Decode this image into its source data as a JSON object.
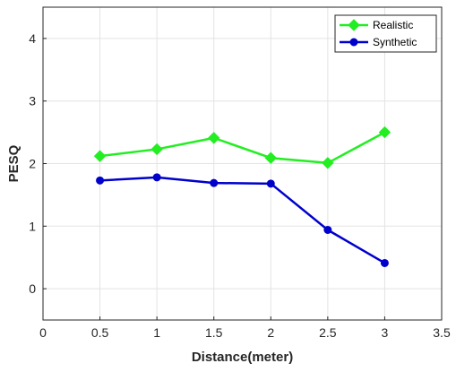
{
  "chart_data": {
    "type": "line",
    "title": "",
    "xlabel": "Distance(meter)",
    "ylabel": "PESQ",
    "xlim": [
      0,
      3.5
    ],
    "ylim": [
      -0.5,
      4.5
    ],
    "x_ticks": [
      "0",
      "0.5",
      "1",
      "1.5",
      "2",
      "2.5",
      "3",
      "3.5"
    ],
    "y_ticks": [
      "0",
      "1",
      "2",
      "3",
      "4"
    ],
    "grid": true,
    "legend_position": "top-right",
    "x": [
      0.5,
      1,
      1.5,
      2,
      2.5,
      3
    ],
    "series": [
      {
        "name": "Realistic",
        "color": "#22ee22",
        "marker": "diamond",
        "values": [
          2.12,
          2.23,
          2.41,
          2.09,
          2.01,
          2.5
        ]
      },
      {
        "name": "Synthetic",
        "color": "#0000cc",
        "marker": "circle",
        "values": [
          1.73,
          1.78,
          1.69,
          1.68,
          0.94,
          0.41
        ]
      }
    ]
  }
}
